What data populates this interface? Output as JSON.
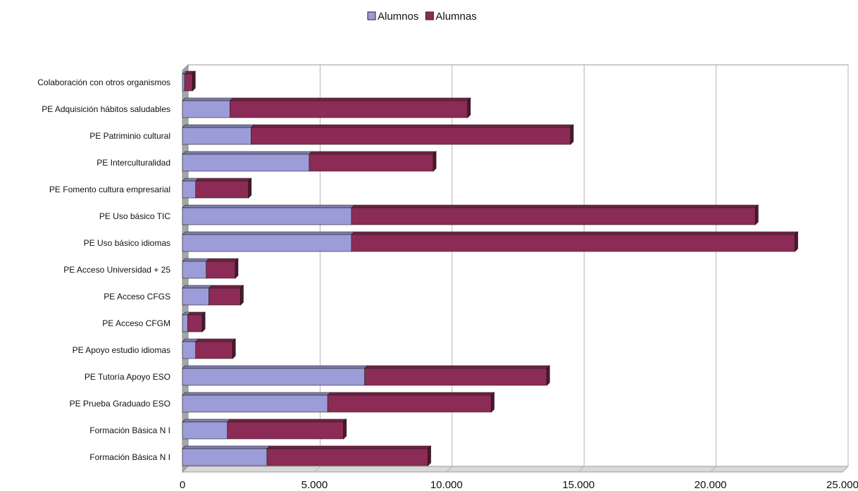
{
  "chart_data": {
    "type": "bar",
    "orientation": "horizontal",
    "stacked": true,
    "three_d": true,
    "categories": [
      "Colaboración con otros organismos",
      "PE Adquisición hábitos saludables",
      "PE Patriminio cultural",
      "PE Interculturalidad",
      "PE Fomento cultura empresarial",
      "PE Uso básico TIC",
      "PE Uso básico idiomas",
      "PE Acceso Universidad + 25",
      "PE Acceso CFGS",
      "PE Acceso CFGM",
      "PE Apoyo estudio idiomas",
      "PE Tutoría Apoyo ESO",
      "PE Prueba Graduado ESO",
      "Formación Básica N I",
      "Formación Básica N I"
    ],
    "series": [
      {
        "name": "Alumnos",
        "color": "#9c9cd8",
        "values": [
          80,
          1800,
          2600,
          4800,
          500,
          6400,
          6400,
          900,
          1000,
          200,
          500,
          6900,
          5500,
          1700,
          3200
        ]
      },
      {
        "name": "Alumnas",
        "color": "#8c2b55",
        "values": [
          300,
          9000,
          12100,
          4700,
          2000,
          15300,
          16800,
          1100,
          1200,
          550,
          1400,
          6900,
          6200,
          4400,
          6100
        ]
      }
    ],
    "xlim": [
      0,
      25000
    ],
    "x_ticks": [
      "0",
      "5.000",
      "10.000",
      "15.000",
      "20.000",
      "25.000"
    ],
    "grid": true,
    "legend_position": "top-center",
    "title": "",
    "xlabel": "",
    "ylabel": ""
  }
}
